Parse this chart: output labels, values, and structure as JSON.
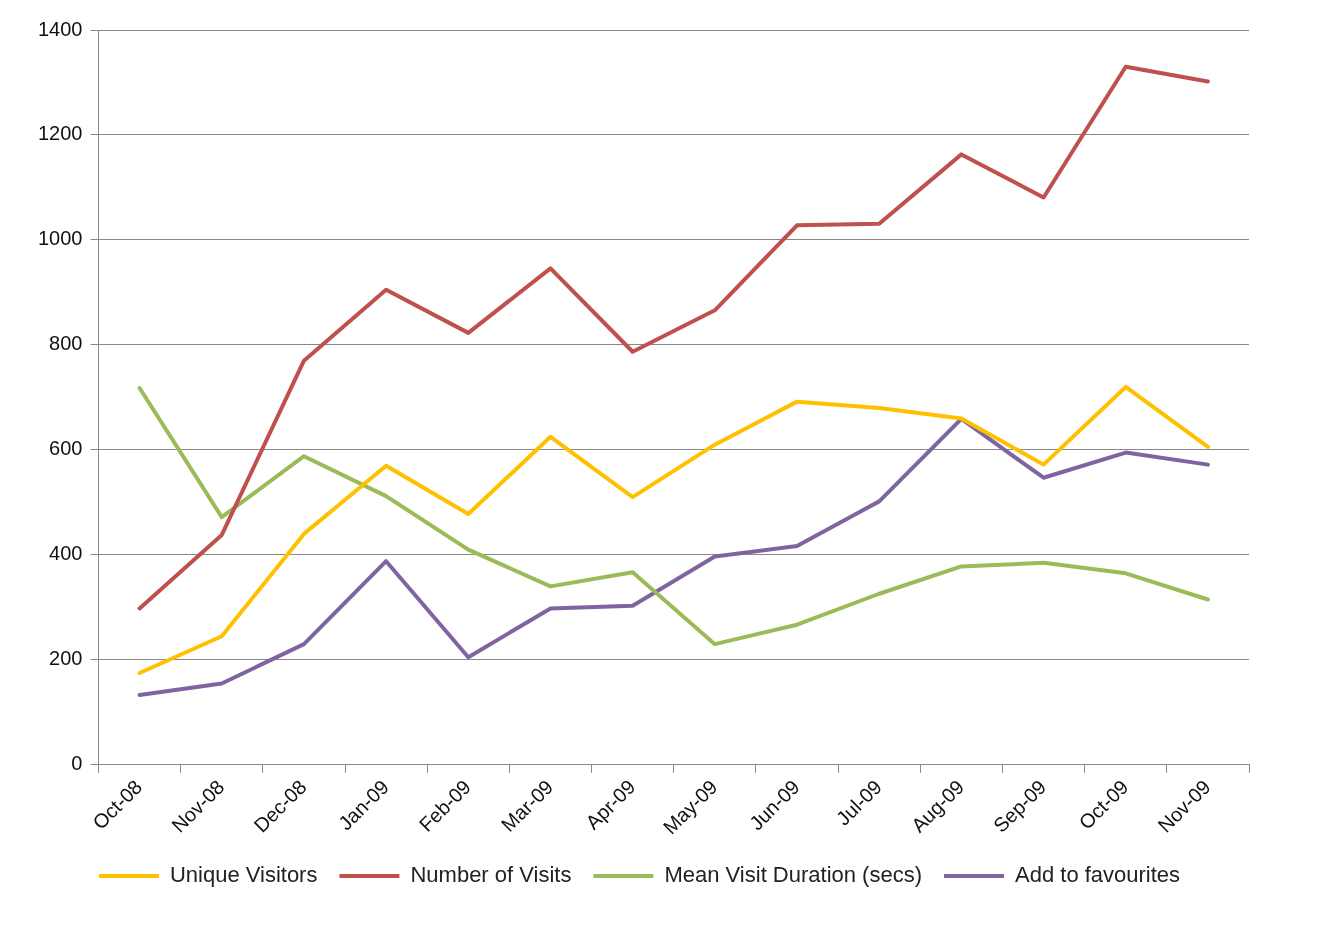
{
  "chart_data": {
    "type": "line",
    "categories": [
      "Oct-08",
      "Nov-08",
      "Dec-08",
      "Jan-09",
      "Feb-09",
      "Mar-09",
      "Apr-09",
      "May-09",
      "Jun-09",
      "Jul-09",
      "Aug-09",
      "Sep-09",
      "Oct-09",
      "Nov-09"
    ],
    "series": [
      {
        "name": "Unique Visitors",
        "color": "#ffc000",
        "values": [
          175,
          245,
          440,
          570,
          478,
          625,
          510,
          610,
          692,
          680,
          660,
          572,
          720,
          606
        ]
      },
      {
        "name": "Number of Visits",
        "color": "#c0504d",
        "values": [
          298,
          438,
          770,
          905,
          823,
          946,
          787,
          866,
          1028,
          1031,
          1163,
          1081,
          1330,
          1302
        ]
      },
      {
        "name": "Mean Visit Duration (secs)",
        "color": "#9bbb59",
        "values": [
          718,
          472,
          588,
          512,
          410,
          340,
          367,
          230,
          267,
          326,
          378,
          385,
          365,
          315
        ]
      },
      {
        "name": "Add to favourites",
        "color": "#8064a2",
        "values": [
          133,
          155,
          230,
          388,
          205,
          298,
          303,
          397,
          417,
          502,
          659,
          547,
          595,
          572
        ]
      }
    ],
    "ylim": [
      0,
      1400
    ],
    "yticks": [
      0,
      200,
      400,
      600,
      800,
      1000,
      1200,
      1400
    ],
    "grid": "y",
    "legend": "bottom",
    "marker": "none",
    "line_style": "solid"
  }
}
